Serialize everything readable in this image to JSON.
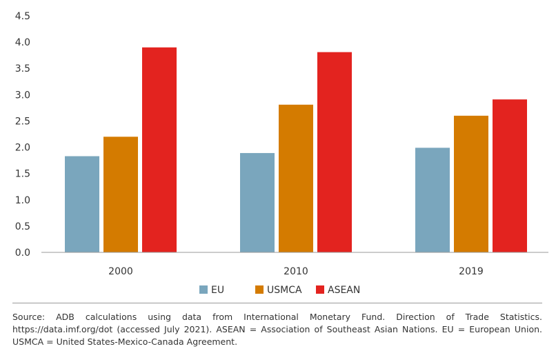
{
  "chart_data": {
    "type": "bar",
    "categories": [
      "2000",
      "2010",
      "2019"
    ],
    "series": [
      {
        "name": "EU",
        "color": "#7aa6bd",
        "values": [
          1.83,
          1.89,
          1.99
        ]
      },
      {
        "name": "USMCA",
        "color": "#d47b00",
        "values": [
          2.2,
          2.81,
          2.6
        ]
      },
      {
        "name": "ASEAN",
        "color": "#e3231f",
        "values": [
          3.9,
          3.81,
          2.91
        ]
      }
    ],
    "y_ticks": [
      "0.0",
      "0.5",
      "1.0",
      "1.5",
      "2.0",
      "2.5",
      "3.0",
      "3.5",
      "4.0",
      "4.5"
    ],
    "ylim": [
      0,
      4.5
    ],
    "grid": false,
    "legend_position": "bottom-center"
  },
  "source_note": "Source: ADB calculations using data from International Monetary Fund. Direction of Trade Statistics. https://data.imf.org/dot (accessed July 2021). ASEAN = Association of Southeast Asian Nations. EU = European Union. USMCA = United States-Mexico-Canada Agreement."
}
